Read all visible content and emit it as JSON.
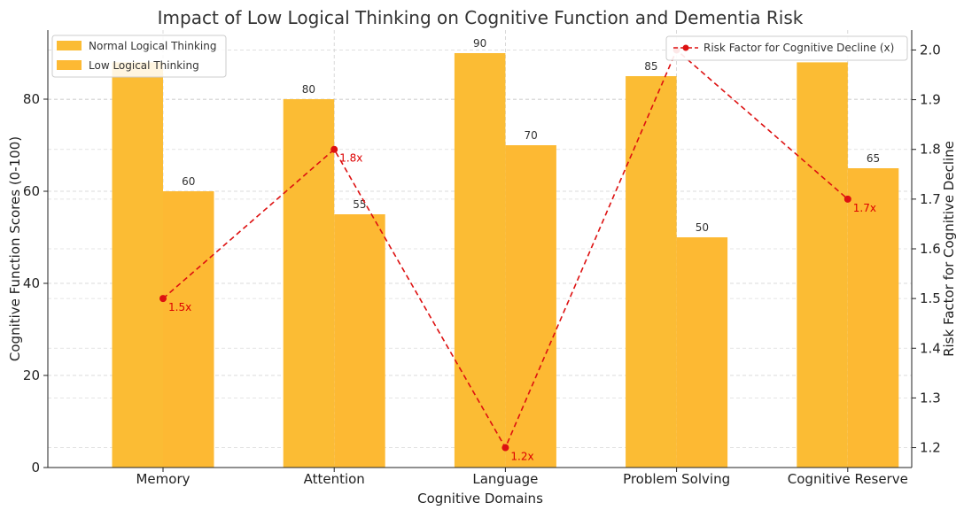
{
  "chart_data": {
    "type": "bar",
    "title": "Impact of Low Logical Thinking on Cognitive Function and Dementia Risk",
    "xlabel": "Cognitive Domains",
    "ylabel": "Cognitive Function Scores (0-100)",
    "y2label": "Risk Factor for Cognitive Decline",
    "categories": [
      "Memory",
      "Attention",
      "Language",
      "Problem Solving",
      "Cognitive Reserve"
    ],
    "ylim": [
      0,
      95
    ],
    "y2lim": [
      1.16,
      2.04
    ],
    "yticks": [
      0,
      20,
      40,
      60,
      80
    ],
    "y2ticks": [
      1.2,
      1.3,
      1.4,
      1.5,
      1.6,
      1.7,
      1.8,
      1.9,
      2.0
    ],
    "y2tick_labels": [
      "1.2",
      "1.3",
      "1.4",
      "1.5",
      "1.6",
      "1.7",
      "1.8",
      "1.9",
      "2.0"
    ],
    "grid": true,
    "legend_left": {
      "position": "top-left",
      "entries": [
        "Normal Logical Thinking",
        "Low Logical Thinking"
      ]
    },
    "legend_right": {
      "position": "top-right",
      "entries": [
        "Risk Factor for Cognitive Decline (x)"
      ]
    },
    "series": [
      {
        "name": "Normal Logical Thinking",
        "values": [
          88,
          80,
          90,
          85,
          88
        ],
        "labels": [
          "",
          "80",
          "90",
          "85",
          ""
        ],
        "color": "#fbbc34"
      },
      {
        "name": "Low Logical Thinking",
        "values": [
          60,
          55,
          70,
          50,
          65
        ],
        "labels": [
          "60",
          "55",
          "70",
          "50",
          "65"
        ],
        "color": "#fdb933"
      }
    ],
    "line_series": {
      "name": "Risk Factor for Cognitive Decline (x)",
      "values": [
        1.5,
        1.8,
        1.2,
        2.0,
        1.7
      ],
      "labels": [
        "1.5x",
        "1.8x",
        "1.2x",
        "",
        "1.7x"
      ],
      "color": "#dd1111",
      "style": "dashed"
    }
  }
}
